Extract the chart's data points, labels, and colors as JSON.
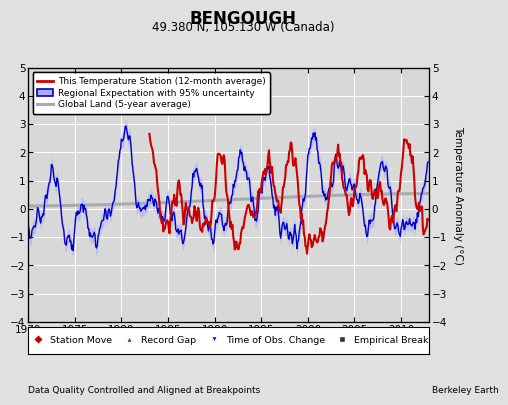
{
  "title": "BENGOUGH",
  "subtitle": "49.380 N, 105.130 W (Canada)",
  "ylabel": "Temperature Anomaly (°C)",
  "footer_left": "Data Quality Controlled and Aligned at Breakpoints",
  "footer_right": "Berkeley Earth",
  "xlim": [
    1970,
    2013
  ],
  "ylim": [
    -4,
    5
  ],
  "yticks": [
    -4,
    -3,
    -2,
    -1,
    0,
    1,
    2,
    3,
    4,
    5
  ],
  "xticks": [
    1970,
    1975,
    1980,
    1985,
    1990,
    1995,
    2000,
    2005,
    2010
  ],
  "bg_color": "#e0e0e0",
  "plot_bg_color": "#d8d8d8",
  "grid_color": "#ffffff",
  "red_line_color": "#cc0000",
  "blue_line_color": "#0000cc",
  "blue_fill_color": "#aaaaff",
  "gray_line_color": "#aaaaaa",
  "legend1_labels": [
    "This Temperature Station (12-month average)",
    "Regional Expectation with 95% uncertainty",
    "Global Land (5-year average)"
  ],
  "legend2_labels": [
    "Station Move",
    "Record Gap",
    "Time of Obs. Change",
    "Empirical Break"
  ],
  "legend2_markers": [
    "D",
    "^",
    "v",
    "s"
  ],
  "legend2_colors": [
    "#cc0000",
    "#006600",
    "#0000cc",
    "#333333"
  ]
}
